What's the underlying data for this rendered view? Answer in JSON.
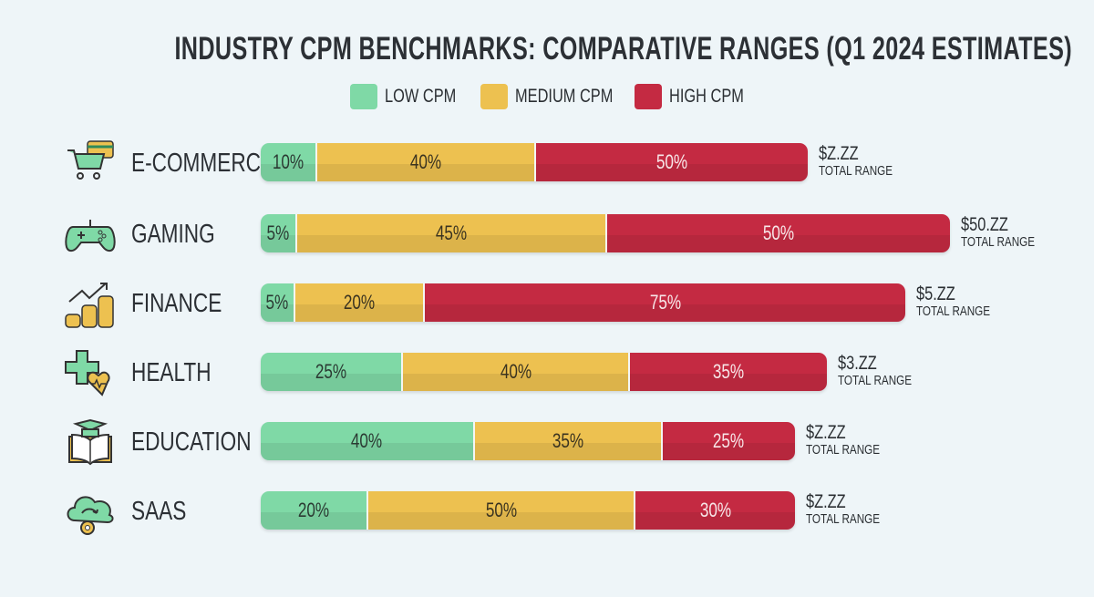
{
  "chart_data": {
    "type": "bar",
    "stacked": true,
    "orientation": "horizontal",
    "title": "INDUSTRY CPM BENCHMARKS: COMPARATIVE RANGES (Q1 2024 ESTIMATES)",
    "legend": {
      "placement": "top",
      "entries": [
        "LOW CPM",
        "MEDIUM CPM",
        "HIGH CPM"
      ]
    },
    "colors": {
      "low": "#7fd9a6",
      "medium": "#edc150",
      "high": "#c42a42"
    },
    "categories": [
      "E-COMMERCE",
      "GAMING",
      "FINANCE",
      "HEALTH",
      "EDUCATION",
      "SAAS"
    ],
    "icons": [
      "shopping-cart-card-icon",
      "gamepad-icon",
      "finance-coins-icon",
      "health-cross-heart-icon",
      "education-book-cap-icon",
      "cloud-gear-icon"
    ],
    "series": [
      {
        "name": "LOW CPM",
        "values": [
          10,
          5,
          5,
          25,
          40,
          20
        ],
        "labels": [
          "10%",
          "5%",
          "5%",
          "25%",
          "40%",
          "20%"
        ]
      },
      {
        "name": "MEDIUM CPM",
        "values": [
          40,
          45,
          20,
          40,
          35,
          50
        ],
        "labels": [
          "40%",
          "45%",
          "20%",
          "40%",
          "35%",
          "50%"
        ]
      },
      {
        "name": "HIGH CPM",
        "values": [
          50,
          50,
          75,
          35,
          25,
          30
        ],
        "labels": [
          "50%",
          "50%",
          "75%",
          "35%",
          "25%",
          "30%"
        ]
      }
    ],
    "totals": [
      "$Z.ZZ",
      "$50.ZZ",
      "$5.ZZ",
      "$3.ZZ",
      "$Z.ZZ",
      "$Z.ZZ"
    ],
    "total_label": "TOTAL RANGE"
  }
}
